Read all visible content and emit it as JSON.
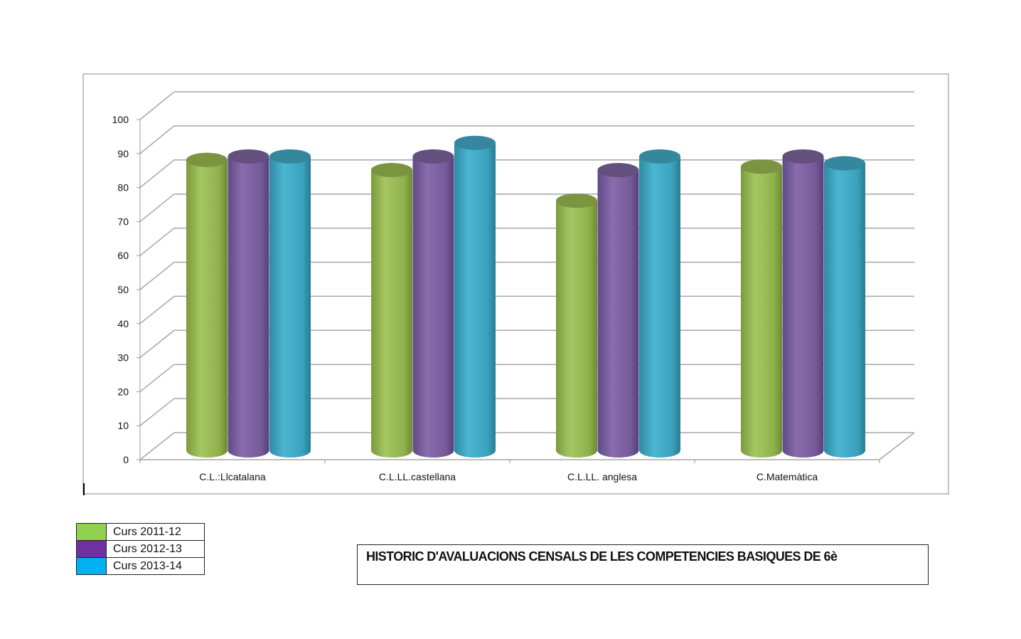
{
  "chart_data": {
    "type": "bar",
    "style": "3d-cylinder",
    "title": "HISTORIC D'AVALUACIONS CENSALS DE LES COMPETENCIES BASIQUES DE 6è",
    "categories": [
      "C.L.:Llcatalana",
      "C.L.LL.castellana",
      "C.L.LL. anglesa",
      "C.Matemàtica"
    ],
    "series": [
      {
        "name": "Curs 2011-12",
        "color": "#92d050",
        "values": [
          84,
          81,
          72,
          82
        ]
      },
      {
        "name": "Curs 2012-13",
        "color": "#7030a0",
        "values": [
          85,
          85,
          81,
          85
        ]
      },
      {
        "name": "Curs 2013-14",
        "color": "#00b0f0",
        "values": [
          85,
          89,
          85,
          83
        ]
      }
    ],
    "yticks": [
      "0",
      "10",
      "20",
      "30",
      "40",
      "50",
      "60",
      "70",
      "80",
      "90",
      "100"
    ],
    "ylim": [
      0,
      100
    ],
    "xlabel": "",
    "ylabel": "",
    "grid": true,
    "legend_position": "bottom-left"
  }
}
